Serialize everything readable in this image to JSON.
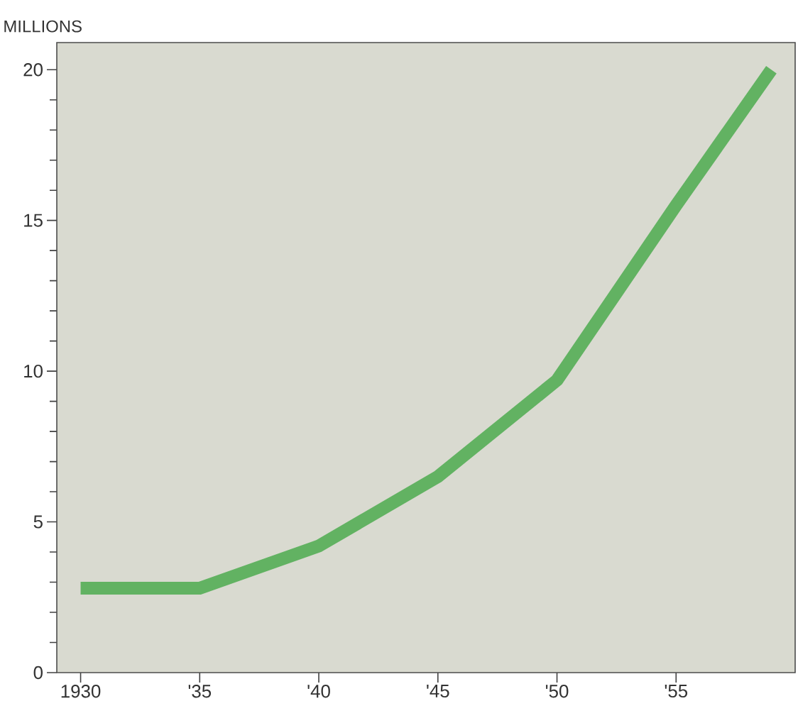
{
  "chart_data": {
    "type": "line",
    "ylabel": "MILLIONS",
    "x": [
      1930,
      1935,
      1940,
      1945,
      1950,
      1955,
      1959
    ],
    "series": [
      {
        "color": "#62b262",
        "values": [
          2.8,
          2.8,
          4.2,
          6.5,
          9.7,
          15.5,
          20
        ]
      }
    ],
    "xlim": [
      1929,
      1960
    ],
    "ylim": [
      0,
      20.9
    ],
    "xticks": [
      1930,
      {
        "value": 1935,
        "label": "'35"
      },
      {
        "value": 1940,
        "label": "'40"
      },
      {
        "value": 1945,
        "label": "'45"
      },
      {
        "value": 1950,
        "label": "'50"
      },
      {
        "value": 1955,
        "label": "'55"
      }
    ],
    "yticks": [
      0,
      5,
      10,
      15,
      20
    ],
    "grid": false,
    "marker": "none",
    "line_style": "solid"
  }
}
